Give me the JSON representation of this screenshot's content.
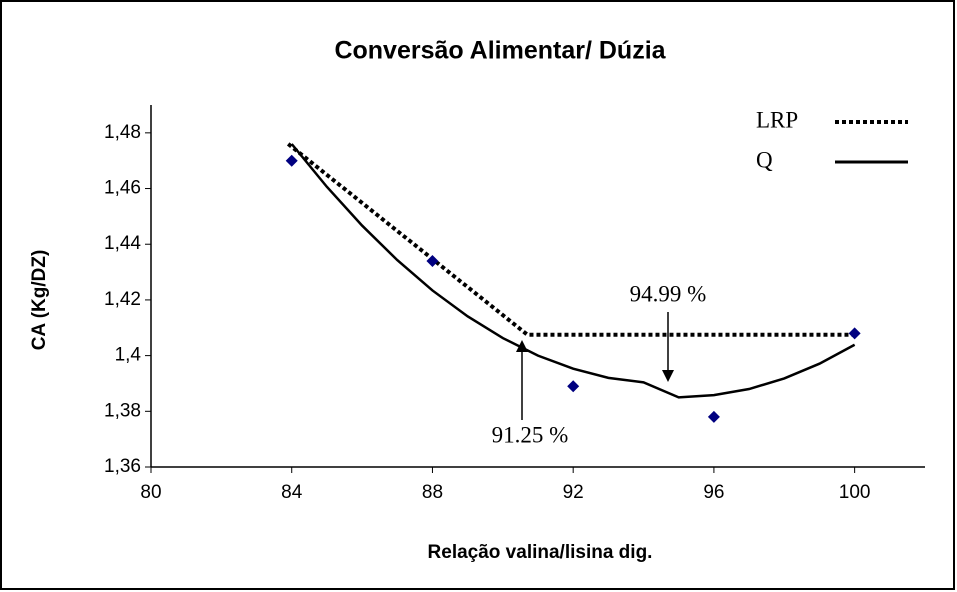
{
  "chart_data": {
    "type": "scatter-lines",
    "title": "Conversão Alimentar/ Dúzia",
    "xlabel": "Relação valina/lisina dig.",
    "ylabel": "CA (Kg/DZ)",
    "xlim": [
      80,
      102
    ],
    "xticks": [
      80,
      84,
      88,
      92,
      96,
      100
    ],
    "ylim": [
      1.36,
      1.49
    ],
    "yticks": [
      {
        "value": 1.36,
        "label": "1,36"
      },
      {
        "value": 1.38,
        "label": "1,38"
      },
      {
        "value": 1.4,
        "label": "1,4"
      },
      {
        "value": 1.42,
        "label": "1,42"
      },
      {
        "value": 1.44,
        "label": "1,44"
      },
      {
        "value": 1.46,
        "label": "1,46"
      },
      {
        "value": 1.48,
        "label": "1,48"
      }
    ],
    "points": {
      "color": "#000080",
      "x": [
        84,
        88,
        92,
        96,
        100
      ],
      "values": [
        1.47,
        1.434,
        1.389,
        1.378,
        1.408
      ]
    },
    "series": [
      {
        "name": "LRP",
        "color": "#000000",
        "style": "dotted",
        "x": [
          83.9,
          90.7,
          100
        ],
        "values": [
          1.476,
          1.4075,
          1.4075
        ]
      },
      {
        "name": "Q",
        "color": "#000000",
        "style": "solid",
        "x": [
          84,
          85,
          86,
          87,
          88,
          89,
          90,
          91,
          92,
          93,
          94,
          95,
          96,
          97,
          98,
          99,
          100
        ],
        "values": [
          1.476,
          1.4606,
          1.4467,
          1.4343,
          1.4234,
          1.4141,
          1.4063,
          1.4,
          1.3953,
          1.392,
          1.3904,
          1.385,
          1.3858,
          1.388,
          1.3918,
          1.3971,
          1.4039
        ]
      }
    ],
    "annotations": [
      "94.99 %",
      "91.25 %"
    ]
  }
}
